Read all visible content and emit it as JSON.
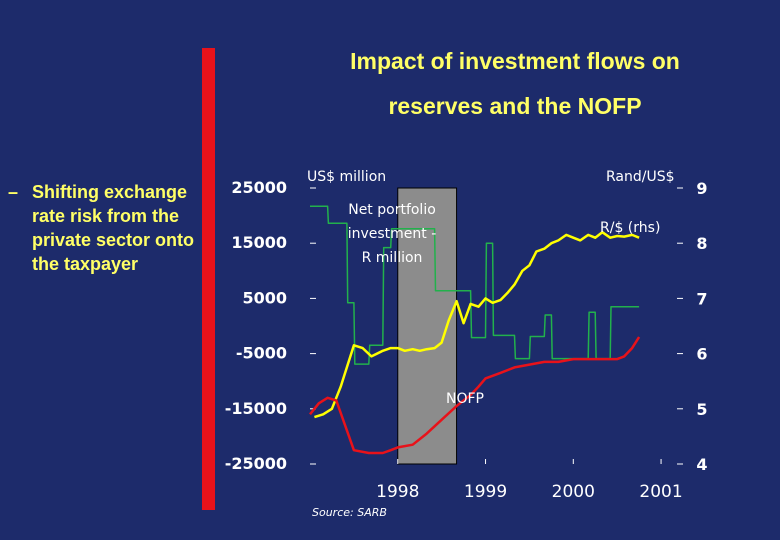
{
  "slide": {
    "title_line1": "Impact of investment flows on",
    "title_line2": "reserves and the NOFP",
    "bullet_dash": "–",
    "bullet_text": "Shifting exchange rate risk from the private sector onto the taxpayer",
    "colors": {
      "background": "#1d2b6b",
      "title": "#ffff66",
      "accent_bar": "#e8121a"
    }
  },
  "chart_data": {
    "type": "line",
    "left_axis_title": "US$ million",
    "right_axis_title": "Rand/US$",
    "left_ticks": [
      "25000",
      "15000",
      "5000",
      "-5000",
      "-15000",
      "-25000"
    ],
    "right_ticks": [
      "9",
      "8",
      "7",
      "6",
      "5",
      "4"
    ],
    "ylim_left": [
      -25000,
      25000
    ],
    "ylim_right": [
      4,
      9
    ],
    "xlim": [
      1997.5,
      2001.75
    ],
    "x_ticks": [
      "1998",
      "1999",
      "2000",
      "2001"
    ],
    "source": "Source: SARB",
    "shaded_period": [
      1998.5,
      1999.17
    ],
    "annotations": {
      "portfolio": [
        "Net portfolio",
        "investment -",
        "R million"
      ],
      "rand": "R/$ (rhs)",
      "nofp": "NOFP"
    },
    "series": [
      {
        "name": "Net portfolio investment - R million",
        "axis": "left",
        "color": "#22b14c",
        "x": [
          1997.5,
          1997.7,
          1997.71,
          1997.92,
          1997.93,
          1998.0,
          1998.01,
          1998.17,
          1998.18,
          1998.33,
          1998.34,
          1998.42,
          1998.43,
          1998.92,
          1998.93,
          1999.33,
          1999.34,
          1999.5,
          1999.51,
          1999.58,
          1999.59,
          1999.83,
          1999.84,
          2000.0,
          2000.01,
          2000.17,
          2000.18,
          2000.25,
          2000.26,
          2000.5,
          2000.51,
          2000.67,
          2000.68,
          2000.75,
          2000.76,
          2000.92,
          2000.93,
          2001.08,
          2001.09,
          2001.25
        ],
        "values": [
          21700,
          21700,
          18600,
          18600,
          4200,
          4200,
          -6900,
          -6900,
          -3500,
          -3500,
          14200,
          14200,
          17600,
          17600,
          6400,
          6400,
          -2100,
          -2100,
          15000,
          15000,
          -1700,
          -1700,
          -5900,
          -5900,
          -1900,
          -1900,
          2000,
          2000,
          -5900,
          -5900,
          -5900,
          -5900,
          2500,
          2500,
          -5900,
          -5900,
          3500,
          3500,
          3500,
          3500
        ]
      },
      {
        "name": "R/$ (rhs)",
        "axis": "right",
        "color": "#ffff00",
        "x": [
          1997.55,
          1997.65,
          1997.75,
          1997.85,
          1998.0,
          1998.1,
          1998.2,
          1998.33,
          1998.42,
          1998.5,
          1998.58,
          1998.67,
          1998.75,
          1998.83,
          1998.92,
          1999.0,
          1999.08,
          1999.17,
          1999.25,
          1999.33,
          1999.42,
          1999.5,
          1999.58,
          1999.67,
          1999.75,
          1999.83,
          1999.92,
          2000.0,
          2000.08,
          2000.17,
          2000.25,
          2000.33,
          2000.42,
          2000.5,
          2000.58,
          2000.67,
          2000.75,
          2000.83,
          2000.92,
          2001.0,
          2001.08,
          2001.17,
          2001.25
        ],
        "values": [
          4.85,
          4.9,
          5.0,
          5.4,
          6.15,
          6.1,
          5.95,
          6.05,
          6.1,
          6.1,
          6.05,
          6.08,
          6.05,
          6.08,
          6.1,
          6.2,
          6.6,
          6.95,
          6.55,
          6.9,
          6.85,
          7.0,
          6.92,
          6.97,
          7.1,
          7.25,
          7.5,
          7.6,
          7.85,
          7.9,
          8.0,
          8.05,
          8.15,
          8.1,
          8.05,
          8.15,
          8.1,
          8.2,
          8.1,
          8.13,
          8.12,
          8.15,
          8.1
        ]
      },
      {
        "name": "NOFP",
        "axis": "left",
        "color": "#e8121a",
        "x": [
          1997.5,
          1997.6,
          1997.7,
          1997.8,
          1998.0,
          1998.17,
          1998.33,
          1998.42,
          1998.5,
          1998.67,
          1998.83,
          1999.0,
          1999.17,
          1999.33,
          1999.42,
          1999.5,
          1999.67,
          1999.83,
          2000.0,
          2000.17,
          2000.33,
          2000.5,
          2000.67,
          2000.83,
          2001.0,
          2001.08,
          2001.17,
          2001.25
        ],
        "values": [
          -16000,
          -14000,
          -13000,
          -13500,
          -22500,
          -23000,
          -23000,
          -22500,
          -22000,
          -21500,
          -19500,
          -17000,
          -14500,
          -12500,
          -11000,
          -9500,
          -8500,
          -7500,
          -7000,
          -6500,
          -6500,
          -6000,
          -6000,
          -6000,
          -6000,
          -5500,
          -4000,
          -2000
        ]
      }
    ]
  }
}
